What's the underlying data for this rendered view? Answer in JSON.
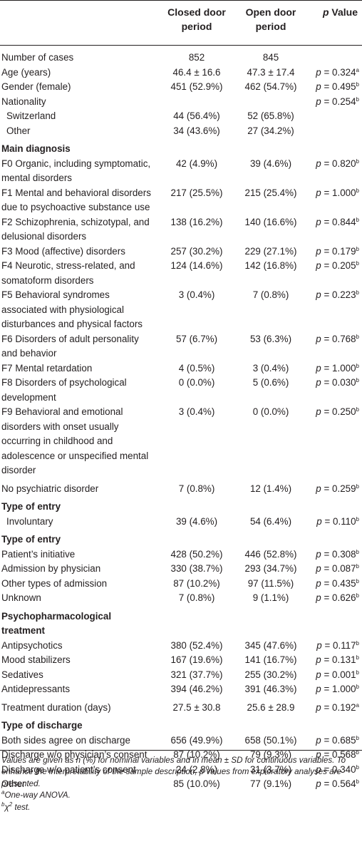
{
  "header": {
    "col_label": "",
    "col_closed": "Closed door period",
    "col_open": "Open door period",
    "col_p_italic": "p",
    "col_p_rest": "Value"
  },
  "rows": [
    {
      "label": "Number of cases",
      "closed": "852",
      "open": "845",
      "p": "",
      "sup": "",
      "style": "first"
    },
    {
      "label": "Age (years)",
      "closed": "46.4 ± 16.6",
      "open": "47.3 ± 17.4",
      "p": "= 0.324",
      "sup": "a",
      "style": ""
    },
    {
      "label": "Gender (female)",
      "closed": "451 (52.9%)",
      "open": "462 (54.7%)",
      "p": "= 0.495",
      "sup": "b",
      "style": ""
    },
    {
      "label": "Nationality",
      "closed": "",
      "open": "",
      "p": "= 0.254",
      "sup": "b",
      "style": ""
    },
    {
      "label": "Switzerland",
      "closed": "44 (56.4%)",
      "open": "52 (65.8%)",
      "p": "",
      "sup": "",
      "style": "sub"
    },
    {
      "label": "Other",
      "closed": "34 (43.6%)",
      "open": "27 (34.2%)",
      "p": "",
      "sup": "",
      "style": "sub"
    },
    {
      "label": "Main diagnosis",
      "closed": "",
      "open": "",
      "p": "",
      "sup": "",
      "style": "section gap"
    },
    {
      "label": "F0 Organic, including symptomatic, mental disorders",
      "closed": "42 (4.9%)",
      "open": "39 (4.6%)",
      "p": "= 0.820",
      "sup": "b",
      "style": ""
    },
    {
      "label": "F1 Mental and behavioral disorders due to psychoactive substance use",
      "closed": "217 (25.5%)",
      "open": "215 (25.4%)",
      "p": "= 1.000",
      "sup": "b",
      "style": ""
    },
    {
      "label": "F2 Schizophrenia, schizotypal, and delusional disorders",
      "closed": "138 (16.2%)",
      "open": "140 (16.6%)",
      "p": "= 0.844",
      "sup": "b",
      "style": ""
    },
    {
      "label": "F3 Mood (affective) disorders",
      "closed": "257 (30.2%)",
      "open": "229 (27.1%)",
      "p": "= 0.179",
      "sup": "b",
      "style": ""
    },
    {
      "label": "F4 Neurotic, stress-related, and somatoform disorders",
      "closed": "124 (14.6%)",
      "open": "142 (16.8%)",
      "p": "= 0.205",
      "sup": "b",
      "style": ""
    },
    {
      "label": "F5 Behavioral syndromes associated with physiological disturbances and physical factors",
      "closed": "3 (0.4%)",
      "open": "7 (0.8%)",
      "p": "= 0.223",
      "sup": "b",
      "style": ""
    },
    {
      "label": "F6 Disorders of adult personality and behavior",
      "closed": "57 (6.7%)",
      "open": "53 (6.3%)",
      "p": "= 0.768",
      "sup": "b",
      "style": ""
    },
    {
      "label": "F7 Mental retardation",
      "closed": "4 (0.5%)",
      "open": "3 (0.4%)",
      "p": "= 1.000",
      "sup": "b",
      "style": ""
    },
    {
      "label": "F8 Disorders of psychological development",
      "closed": "0 (0.0%)",
      "open": "5 (0.6%)",
      "p": "= 0.030",
      "sup": "b",
      "style": ""
    },
    {
      "label": "F9 Behavioral and emotional disorders with onset usually occurring in childhood and adolescence or unspecified mental disorder",
      "closed": "3 (0.4%)",
      "open": "0 (0.0%)",
      "p": "= 0.250",
      "sup": "b",
      "style": ""
    },
    {
      "label": "No psychiatric disorder",
      "closed": "7 (0.8%)",
      "open": "12 (1.4%)",
      "p": "= 0.259",
      "sup": "b",
      "style": "gap"
    },
    {
      "label": "Type of entry",
      "closed": "",
      "open": "",
      "p": "",
      "sup": "",
      "style": "section gap"
    },
    {
      "label": "Involuntary",
      "closed": "39 (4.6%)",
      "open": "54 (6.4%)",
      "p": "= 0.110",
      "sup": "b",
      "style": "sub"
    },
    {
      "label": "Type of entry",
      "closed": "",
      "open": "",
      "p": "",
      "sup": "",
      "style": "section gap"
    },
    {
      "label": "Patient’s initiative",
      "closed": "428 (50.2%)",
      "open": "446 (52.8%)",
      "p": "= 0.308",
      "sup": "b",
      "style": ""
    },
    {
      "label": "Admission by physician",
      "closed": "330 (38.7%)",
      "open": "293 (34.7%)",
      "p": "= 0.087",
      "sup": "b",
      "style": ""
    },
    {
      "label": "Other types of admission",
      "closed": "87 (10.2%)",
      "open": "97 (11.5%)",
      "p": "= 0.435",
      "sup": "b",
      "style": ""
    },
    {
      "label": "Unknown",
      "closed": "7 (0.8%)",
      "open": "9 (1.1%)",
      "p": "= 0.626",
      "sup": "b",
      "style": ""
    },
    {
      "label": "Psychopharmacological treatment",
      "closed": "",
      "open": "",
      "p": "",
      "sup": "",
      "style": "section gap"
    },
    {
      "label": "Antipsychotics",
      "closed": "380 (52.4%)",
      "open": "345 (47.6%)",
      "p": "= 0.117",
      "sup": "b",
      "style": ""
    },
    {
      "label": "Mood stabilizers",
      "closed": "167 (19.6%)",
      "open": "141 (16.7%)",
      "p": "= 0.131",
      "sup": "b",
      "style": ""
    },
    {
      "label": "Sedatives",
      "closed": "321 (37.7%)",
      "open": "255 (30.2%)",
      "p": "= 0.001",
      "sup": "b",
      "style": ""
    },
    {
      "label": "Antidepressants",
      "closed": "394 (46.2%)",
      "open": "391 (46.3%)",
      "p": "= 1.000",
      "sup": "b",
      "style": ""
    },
    {
      "label": "Treatment duration (days)",
      "closed": "27.5 ± 30.8",
      "open": "25.6 ± 28.9",
      "p": "= 0.192",
      "sup": "a",
      "style": "gap"
    },
    {
      "label": "Type of discharge",
      "closed": "",
      "open": "",
      "p": "",
      "sup": "",
      "style": "section gap"
    },
    {
      "label": "Both sides agree on discharge",
      "closed": "656 (49.9%)",
      "open": "658 (50.1%)",
      "p": "= 0.685",
      "sup": "b",
      "style": ""
    },
    {
      "label": "Discharge w/o physician’s consent",
      "closed": "87 (10.2%)",
      "open": "79 (9.3%)",
      "p": "= 0.568",
      "sup": "b",
      "style": ""
    },
    {
      "label": "Discharge w/o patient’s consent",
      "closed": "24 (2.8%)",
      "open": "31 (3.7%)",
      "p": "= 0.340",
      "sup": "b",
      "style": ""
    },
    {
      "label": "Other",
      "closed": "85 (10.0%)",
      "open": "77 (9.1%)",
      "p": "= 0.564",
      "sup": "b",
      "style": ""
    }
  ],
  "p_symbol": "p",
  "notes": {
    "main": "Values are given as n (%) for nominal variables and in mean ± SD for continuous variables. To enhance the interpretability of the sample description, p values from exploratory analyses are presented.",
    "a_mark": "a",
    "a_text": "One-way ANOVA.",
    "b_mark": "b",
    "b_text": "χ",
    "b_sup": "2",
    "b_rest": " test."
  }
}
